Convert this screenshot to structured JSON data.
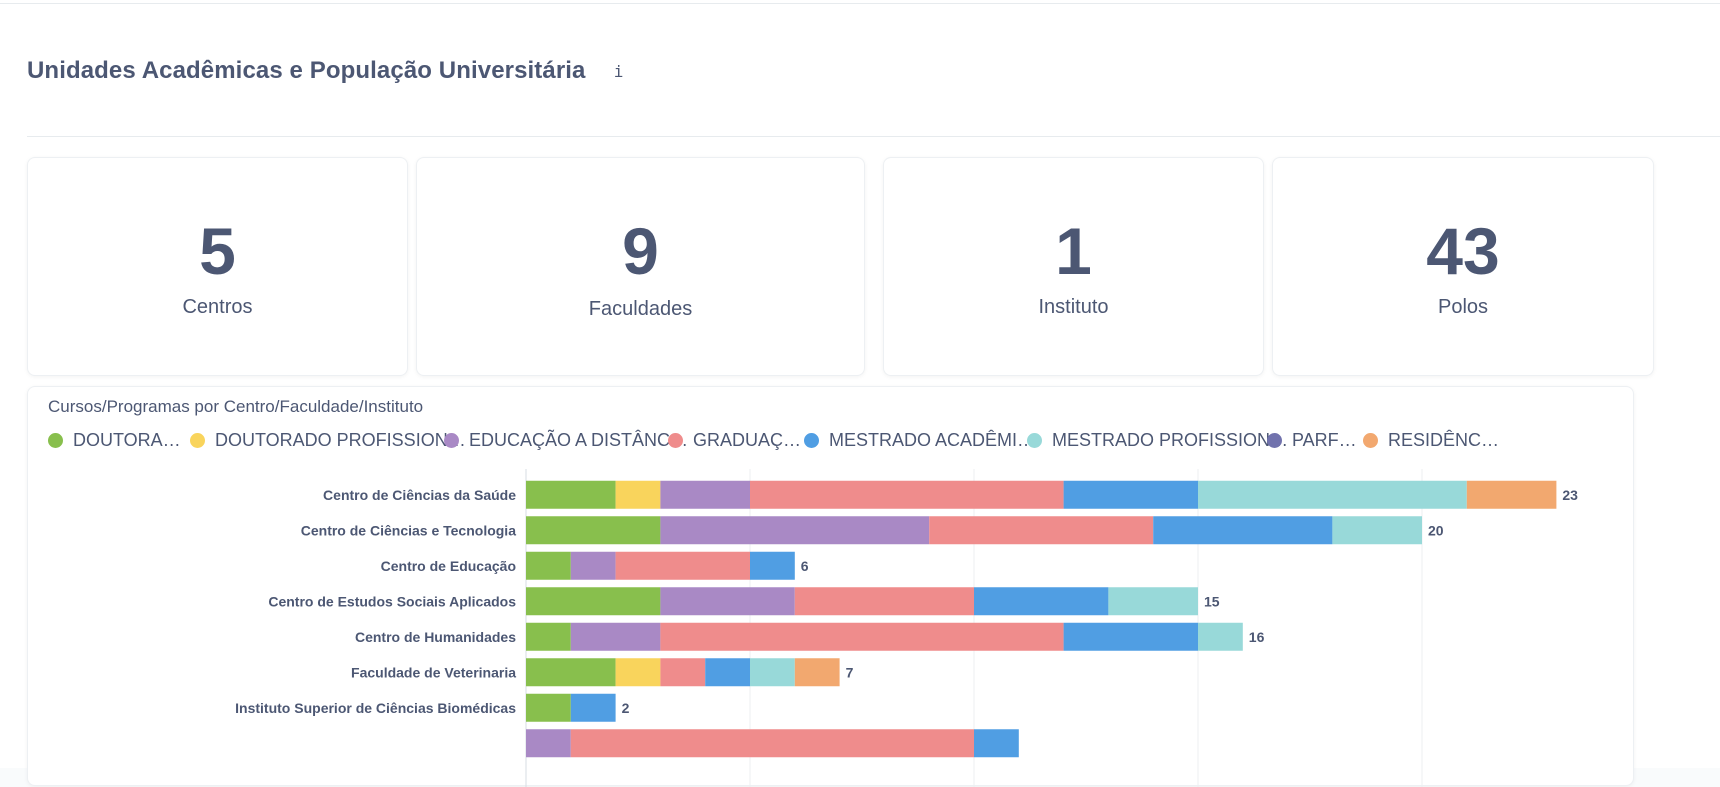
{
  "section": {
    "title": "Unidades Acadêmicas e População Universitária",
    "info_glyph": "i"
  },
  "kpis": [
    {
      "value": "5",
      "label": "Centros"
    },
    {
      "value": "9",
      "label": "Faculdades"
    },
    {
      "value": "1",
      "label": "Instituto"
    },
    {
      "value": "43",
      "label": "Polos"
    }
  ],
  "chart_data": {
    "type": "bar",
    "orientation": "horizontal",
    "stacked": true,
    "title": "Cursos/Programas por Centro/Faculdade/Instituto",
    "legend_position": "top",
    "grid": true,
    "categories": [
      "Centro de Ciências da Saúde",
      "Centro de Ciências e Tecnologia",
      "Centro de Educação",
      "Centro de Estudos Sociais Aplicados",
      "Centro de Humanidades",
      "Faculdade de Veterinaria",
      "Instituto Superior de Ciências Biomédicas",
      ""
    ],
    "series": [
      {
        "name": "DOUTORA…",
        "color": "#88bf4d",
        "values": [
          2,
          3,
          1,
          3,
          1,
          2,
          1,
          0
        ]
      },
      {
        "name": "DOUTORADO PROFISSION…",
        "color": "#f9d45c",
        "values": [
          1,
          0,
          0,
          0,
          0,
          1,
          0,
          0
        ]
      },
      {
        "name": "EDUCAÇÃO A DISTÂNC…",
        "color": "#a989c5",
        "values": [
          2,
          6,
          1,
          3,
          2,
          0,
          0,
          1
        ]
      },
      {
        "name": "GRADUAÇ…",
        "color": "#ef8c8c",
        "values": [
          7,
          5,
          3,
          4,
          9,
          1,
          0,
          9
        ]
      },
      {
        "name": "MESTRADO ACADÊMI…",
        "color": "#509ee3",
        "values": [
          3,
          4,
          1,
          3,
          3,
          1,
          1,
          1
        ]
      },
      {
        "name": "MESTRADO PROFISSION…",
        "color": "#98d9d9",
        "values": [
          6,
          2,
          0,
          2,
          1,
          1,
          0,
          0
        ]
      },
      {
        "name": "PARF…",
        "color": "#7172ad",
        "values": [
          0,
          0,
          0,
          0,
          0,
          0,
          0,
          0
        ]
      },
      {
        "name": "RESIDÊNC…",
        "color": "#f2a86f",
        "values": [
          2,
          0,
          0,
          0,
          0,
          1,
          0,
          0
        ]
      }
    ],
    "totals": [
      23,
      20,
      6,
      15,
      16,
      7,
      2,
      null
    ],
    "xlim": [
      0,
      25
    ]
  }
}
